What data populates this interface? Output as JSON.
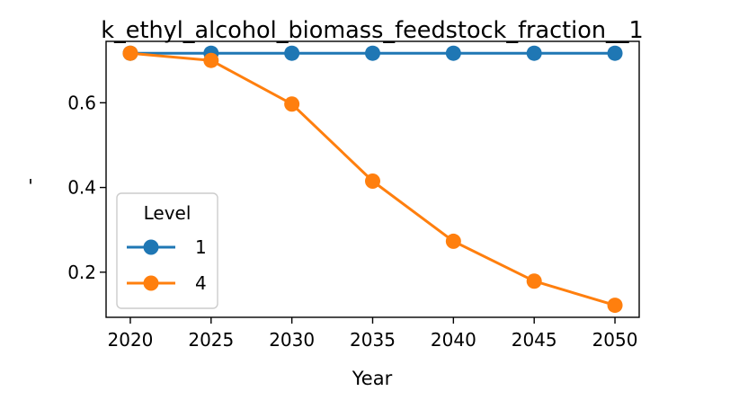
{
  "chart_data": {
    "type": "line",
    "title": "k_ethyl_alcohol_biomass_feedstock_fraction__1",
    "xlabel": "Year",
    "ylabel": "'",
    "x": [
      2020,
      2025,
      2030,
      2035,
      2040,
      2045,
      2050
    ],
    "xticks": [
      "2020",
      "2025",
      "2030",
      "2035",
      "2040",
      "2045",
      "2050"
    ],
    "yticks": [
      "0.2",
      "0.4",
      "0.6"
    ],
    "xlim": [
      2018.5,
      2051.5
    ],
    "ylim": [
      0.0935,
      0.745
    ],
    "grid": false,
    "legend": {
      "title": "Level",
      "position": "lower-left"
    },
    "series": [
      {
        "name": "1",
        "color": "#1f77b4",
        "marker": "circle",
        "values": [
          0.717,
          0.717,
          0.717,
          0.717,
          0.717,
          0.717,
          0.717
        ]
      },
      {
        "name": "4",
        "color": "#ff7f0e",
        "marker": "circle",
        "values": [
          0.717,
          0.7,
          0.597,
          0.415,
          0.273,
          0.179,
          0.122
        ]
      }
    ]
  }
}
